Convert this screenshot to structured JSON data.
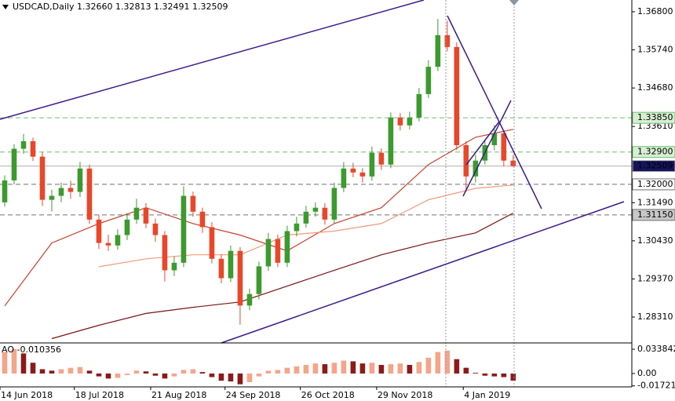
{
  "chart_data": {
    "type": "candlestick",
    "title": "USDCAD,Daily  1.32660 1.32813 1.32491 1.32509",
    "xlim": [
      -0.5,
      66.6
    ],
    "xticks": [
      {
        "value": -0.5,
        "label": "14 Jun 2018"
      },
      {
        "value": 7.4,
        "label": "18 Jul 2018"
      },
      {
        "value": 15.5,
        "label": "21 Aug 2018"
      },
      {
        "value": 23.4,
        "label": "24 Sep 2018"
      },
      {
        "value": 31.4,
        "label": "26 Oct 2018"
      },
      {
        "value": 39.5,
        "label": "29 Nov 2018"
      },
      {
        "value": 48.7,
        "label": "4 Jan 2019"
      }
    ],
    "ylim": [
      1.2759,
      1.37127
    ],
    "yticks": [
      {
        "value": 1.368,
        "label": "1.36800"
      },
      {
        "value": 1.3574,
        "label": "1.35740"
      },
      {
        "value": 1.3468,
        "label": "1.34680"
      },
      {
        "value": 1.3361,
        "label": "1.33610"
      },
      {
        "value": 1.3149,
        "label": "1.31490"
      },
      {
        "value": 1.3043,
        "label": "1.30430"
      },
      {
        "value": 1.2937,
        "label": "1.29370"
      },
      {
        "value": 1.2831,
        "label": "1.28310"
      }
    ],
    "up_color": "#3c9a2e",
    "down_color": "#e8472a",
    "open": [
      1.315,
      1.3211,
      1.3299,
      1.332,
      1.3277,
      1.3157,
      1.3168,
      1.319,
      1.3179,
      1.3244,
      1.3102,
      1.3037,
      1.303,
      1.3059,
      1.3102,
      1.3135,
      1.3091,
      1.3059,
      1.2961,
      1.2982,
      1.3168,
      1.3124,
      1.3081,
      1.2993,
      1.2939,
      1.3015,
      1.2863,
      1.2895,
      1.2972,
      1.3048,
      1.2982,
      1.307,
      1.3091,
      1.3124,
      1.3135,
      1.3102,
      1.319,
      1.3244,
      1.3233,
      1.3222,
      1.3288,
      1.3255,
      1.3386,
      1.3364,
      1.3386,
      1.3451,
      1.3527,
      1.3615,
      1.3582,
      1.3309,
      1.3222,
      1.3266,
      1.3309,
      1.3342,
      1.3266
    ],
    "high": [
      1.3225,
      1.3312,
      1.334,
      1.333,
      1.329,
      1.3185,
      1.3205,
      1.321,
      1.3262,
      1.3255,
      1.3115,
      1.306,
      1.3075,
      1.312,
      1.316,
      1.3148,
      1.3105,
      1.307,
      1.3,
      1.3195,
      1.318,
      1.3135,
      1.3095,
      1.3005,
      1.303,
      1.3025,
      1.291,
      1.2985,
      1.3065,
      1.306,
      1.3085,
      1.311,
      1.314,
      1.315,
      1.3148,
      1.3205,
      1.3262,
      1.326,
      1.3245,
      1.3305,
      1.33,
      1.34,
      1.3398,
      1.3402,
      1.3468,
      1.3545,
      1.366,
      1.3655,
      1.3595,
      1.332,
      1.3282,
      1.3325,
      1.3365,
      1.335,
      1.32813
    ],
    "low": [
      1.3138,
      1.32,
      1.3285,
      1.3265,
      1.314,
      1.3125,
      1.315,
      1.316,
      1.3165,
      1.309,
      1.302,
      1.3015,
      1.3018,
      1.3045,
      1.309,
      1.3078,
      1.304,
      1.293,
      1.2945,
      1.297,
      1.311,
      1.3065,
      1.298,
      1.2925,
      1.2928,
      1.281,
      1.285,
      1.288,
      1.296,
      1.297,
      1.297,
      1.3055,
      1.308,
      1.311,
      1.3088,
      1.309,
      1.3178,
      1.322,
      1.3205,
      1.321,
      1.324,
      1.3245,
      1.335,
      1.3352,
      1.3375,
      1.344,
      1.3515,
      1.357,
      1.3295,
      1.318,
      1.3205,
      1.3255,
      1.3295,
      1.325,
      1.32491
    ],
    "close": [
      1.3211,
      1.3299,
      1.332,
      1.3277,
      1.3157,
      1.3168,
      1.319,
      1.3179,
      1.3244,
      1.3102,
      1.3037,
      1.303,
      1.3059,
      1.3102,
      1.3135,
      1.3091,
      1.3059,
      1.2961,
      1.2982,
      1.3168,
      1.3124,
      1.3081,
      1.2993,
      1.2939,
      1.3015,
      1.2863,
      1.2895,
      1.2972,
      1.3048,
      1.2982,
      1.307,
      1.3091,
      1.3124,
      1.3135,
      1.3102,
      1.319,
      1.3244,
      1.3233,
      1.3222,
      1.3288,
      1.3255,
      1.3386,
      1.3364,
      1.3386,
      1.3451,
      1.3527,
      1.3615,
      1.3582,
      1.3309,
      1.3222,
      1.3266,
      1.3309,
      1.3342,
      1.3266,
      1.32509
    ],
    "lines": [
      {
        "color": "#c8402f",
        "x": [
          0,
          5,
          10,
          15,
          20,
          25,
          30,
          35,
          40,
          45,
          50,
          54
        ],
        "values": [
          1.2862,
          1.3037,
          1.3091,
          1.3135,
          1.3091,
          1.3059,
          1.3015,
          1.3091,
          1.3135,
          1.3255,
          1.3331,
          1.3353
        ]
      },
      {
        "color": "#f29a7a",
        "x": [
          10,
          15,
          20,
          25,
          30,
          35,
          40,
          45,
          50,
          54
        ],
        "values": [
          1.2971,
          1.2993,
          1.3004,
          1.3004,
          1.3059,
          1.307,
          1.3091,
          1.3157,
          1.3189,
          1.3198
        ]
      },
      {
        "color": "#7a1414",
        "x": [
          5,
          10,
          15,
          20,
          25,
          30,
          35,
          40,
          45,
          50,
          54
        ],
        "values": [
          1.2771,
          1.2808,
          1.2841,
          1.2858,
          1.2873,
          1.2917,
          1.2961,
          1.3004,
          1.3037,
          1.3065,
          1.312
        ]
      }
    ],
    "levels": [
      {
        "value": 1.3385,
        "label": "1.33850",
        "color": "#6fbf6f",
        "label_bg": "#d6efd2",
        "label_color": "#000000",
        "dash": true
      },
      {
        "value": 1.329,
        "label": "1.32900",
        "color": "#6fbf6f",
        "label_bg": "#d6efd2",
        "label_color": "#000000",
        "dash": true
      },
      {
        "value": 1.32509,
        "label": "1.32509",
        "color": "#b0b0b0",
        "label_bg": "#14145c",
        "label_color": "#ffffff",
        "dash": false
      },
      {
        "value": 1.32,
        "label": "1.32000",
        "color": "#707070",
        "label_bg": "#ffffff",
        "label_color": "#000000",
        "dash": true
      },
      {
        "value": 1.3115,
        "label": "1.31150",
        "color": "#707070",
        "label_bg": "#c8c8c8",
        "label_color": "#000000",
        "dash": true
      }
    ],
    "indicator": {
      "type": "bar",
      "label": "AO -0.010356",
      "ylim": [
        -0.0186,
        0.0426
      ],
      "yticks": [
        0.033842,
        {
          "value": 0,
          "label": "0.00"
        },
        -0.01721
      ],
      "up_color": "#f4a58a",
      "down_color": "#8b1a1a",
      "values": [
        0.03,
        0.034,
        0.028,
        0.015,
        0.006,
        0.004,
        0.006,
        0.008,
        0.009,
        0.004,
        -0.004,
        -0.007,
        -0.006,
        -0.002,
        0.004,
        0.003,
        -0.003,
        -0.007,
        -0.004,
        0.005,
        0.006,
        0.002,
        -0.005,
        -0.01,
        -0.011,
        -0.015,
        -0.012,
        -0.004,
        0.004,
        0.005,
        0.008,
        0.01,
        0.012,
        0.014,
        0.013,
        0.015,
        0.018,
        0.017,
        0.014,
        0.015,
        0.012,
        0.013,
        0.014,
        0.012,
        0.016,
        0.022,
        0.03,
        0.032,
        0.02,
        0.008,
        0.001,
        -0.003,
        -0.004,
        -0.005,
        -0.01
      ]
    }
  }
}
